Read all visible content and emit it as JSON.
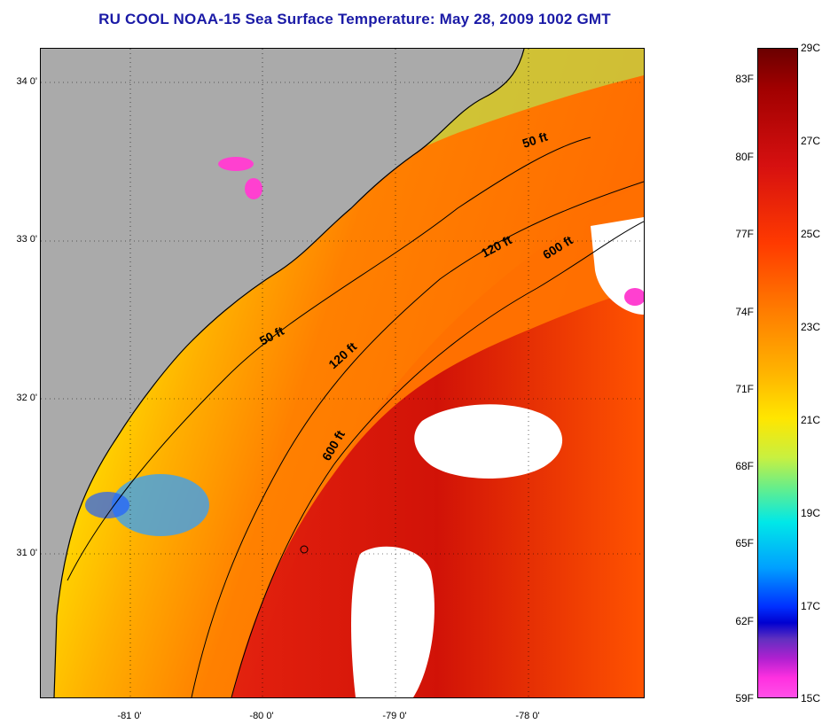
{
  "title": "RU COOL  NOAA-15  Sea Surface Temperature:  May 28, 2009 1002 GMT",
  "map": {
    "lat_labels": [
      "34 0'",
      "33 0'",
      "32 0'",
      "31 0'"
    ],
    "lon_labels": [
      "-81 0'",
      "-80 0'",
      "-79 0'",
      "-78 0'"
    ],
    "contour_labels": [
      "50 ft",
      "120 ft",
      "600 ft",
      "50 ft",
      "120 ft",
      "600 ft"
    ],
    "colors": {
      "land": "#aaaaaa",
      "cloud": "#ffffff",
      "frame": "#000000"
    }
  },
  "colorbar": {
    "fahrenheit_labels": [
      "83F",
      "80F",
      "77F",
      "74F",
      "71F",
      "68F",
      "65F",
      "62F",
      "59F"
    ],
    "celsius_labels": [
      "29C",
      "27C",
      "25C",
      "23C",
      "21C",
      "19C",
      "17C",
      "15C"
    ]
  }
}
